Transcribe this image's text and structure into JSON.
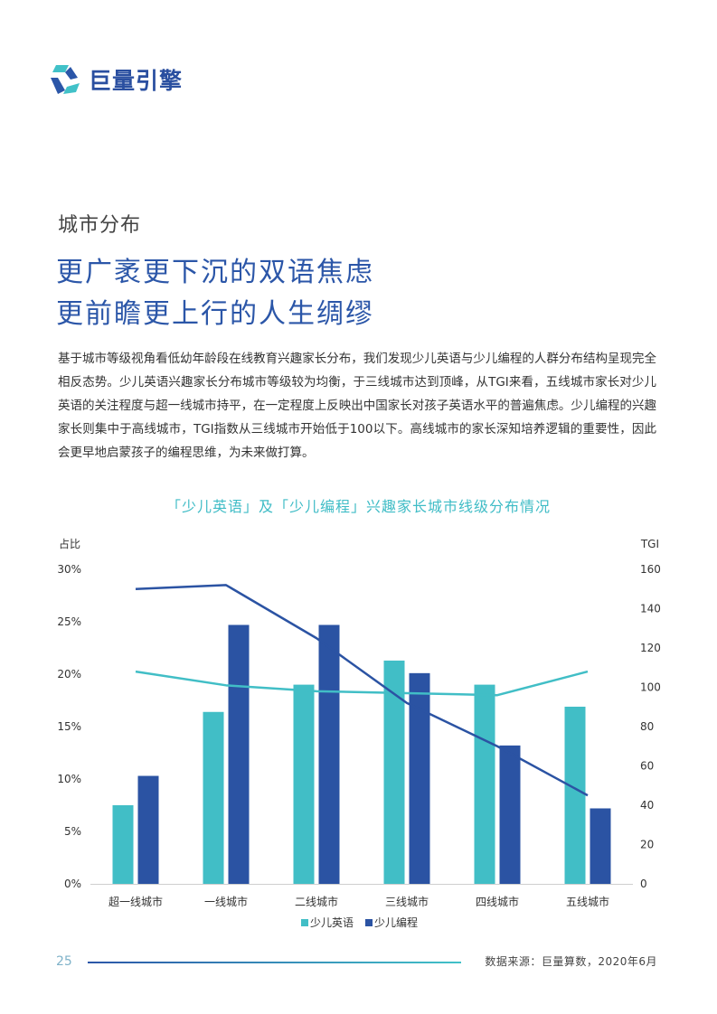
{
  "brand": {
    "name": "巨量引擎"
  },
  "section": {
    "label": "城市分布"
  },
  "headline": {
    "line1": "更广袤更下沉的双语焦虑",
    "line2": "更前瞻更上行的人生绸缪"
  },
  "body": {
    "paragraph": "基于城市等级视角看低幼年龄段在线教育兴趣家长分布，我们发现少儿英语与少儿编程的人群分布结构呈现完全相反态势。少儿英语兴趣家长分布城市等级较为均衡，于三线城市达到顶峰，从TGI来看，五线城市家长对少儿英语的关注程度与超一线城市持平，在一定程度上反映出中国家长对孩子英语水平的普遍焦虑。少儿编程的兴趣家长则集中于高线城市，TGI指数从三线城市开始低于100以下。高线城市的家长深知培养逻辑的重要性，因此会更早地启蒙孩子的编程思维，为未来做打算。"
  },
  "colors": {
    "english": "#41bec6",
    "coding": "#2b53a3",
    "title": "#3fbcc6",
    "headline": "#2b56a8"
  },
  "chart_data": {
    "type": "bar",
    "title": "「少儿英语」及「少儿编程」兴趣家长城市线级分布情况",
    "categories": [
      "超一线城市",
      "一线城市",
      "二线城市",
      "三线城市",
      "四线城市",
      "五线城市"
    ],
    "y_left": {
      "label": "占比",
      "ylim": [
        0,
        30
      ],
      "ticks": [
        "0%",
        "5%",
        "10%",
        "15%",
        "20%",
        "25%",
        "30%"
      ]
    },
    "y_right": {
      "label": "TGI",
      "ylim": [
        0,
        160
      ],
      "ticks": [
        "0",
        "20",
        "40",
        "60",
        "80",
        "100",
        "120",
        "140",
        "160"
      ]
    },
    "series": [
      {
        "name": "少儿英语",
        "kind": "bar",
        "axis": "left",
        "values": [
          7.5,
          16.4,
          19.0,
          21.3,
          19.0,
          16.9
        ]
      },
      {
        "name": "少儿编程",
        "kind": "bar",
        "axis": "left",
        "values": [
          10.3,
          24.7,
          24.7,
          20.1,
          13.2,
          7.2
        ]
      },
      {
        "kind": "line",
        "axis": "right",
        "ref": "少儿英语",
        "values": [
          108,
          101,
          98,
          97,
          96,
          108
        ]
      },
      {
        "kind": "line",
        "axis": "right",
        "ref": "少儿编程",
        "values": [
          150,
          152,
          125,
          92,
          70,
          45
        ]
      }
    ],
    "legend": "bottom",
    "grid": false
  },
  "footer": {
    "page": "25",
    "source": "数据来源：巨量算数，2020年6月"
  }
}
